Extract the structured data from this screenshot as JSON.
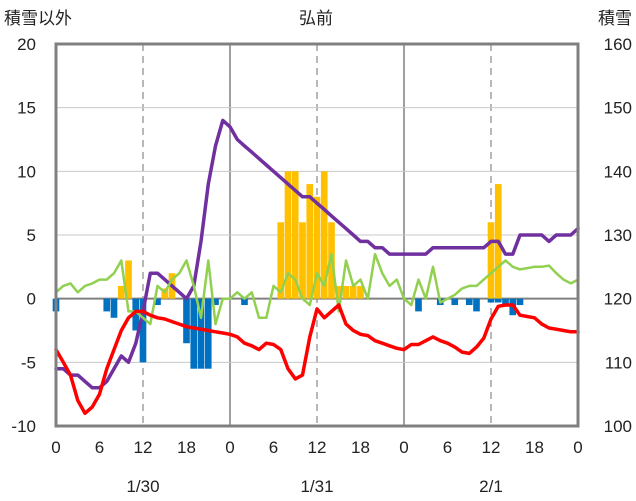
{
  "chart_data": {
    "type": "bar",
    "title": "弘前",
    "ylabel_left": "積雪以外",
    "ylabel_right": "積雪",
    "ylim_left": [
      -10,
      20
    ],
    "ylim_right": [
      100,
      160
    ],
    "yticks_left": [
      20,
      15,
      10,
      5,
      0,
      -5,
      -10
    ],
    "yticks_right": [
      160,
      150,
      140,
      130,
      120,
      110,
      100
    ],
    "xlim_hours": [
      0,
      72
    ],
    "xtick_labels": [
      "0",
      "6",
      "12",
      "18",
      "0",
      "6",
      "12",
      "18",
      "0",
      "6",
      "12",
      "18",
      "0"
    ],
    "day_labels": [
      {
        "label": "1/30",
        "hour": 12
      },
      {
        "label": "1/31",
        "hour": 36
      },
      {
        "label": "2/1",
        "hour": 60
      }
    ],
    "grid": {
      "dashed_hours": [
        12,
        36,
        60
      ],
      "solid_hours": [
        24,
        48
      ]
    },
    "colors": {
      "snowfall": "#ffc000",
      "temp_change": "#0070c0",
      "snow_depth": "#7030a0",
      "temp_change_line": "#92d050",
      "temperature": "#ff0000",
      "axis": "#808080"
    },
    "series": [
      {
        "kind": "bar",
        "axis": "left",
        "color_key": "snowfall",
        "x": [
          9,
          10,
          15,
          16,
          31,
          32,
          33,
          34,
          35,
          36,
          37,
          38,
          39,
          40,
          41,
          42,
          60,
          61
        ],
        "values": [
          1,
          3,
          0.8,
          2,
          6,
          10,
          10,
          6,
          9,
          8,
          10,
          6,
          1,
          1,
          1,
          1,
          6,
          9
        ]
      },
      {
        "kind": "bar",
        "axis": "left",
        "color_key": "temp_change",
        "x": [
          0,
          7,
          8,
          11,
          12,
          14,
          18,
          19,
          20,
          21,
          22,
          26,
          50,
          53,
          55,
          57,
          58,
          60,
          61,
          62,
          63,
          64
        ],
        "values": [
          -1,
          -1,
          -1.5,
          -2.5,
          -5,
          -0.5,
          -3.5,
          -5.5,
          -5.5,
          -5.5,
          -0.5,
          -0.5,
          -1,
          -0.5,
          -0.5,
          -0.5,
          -1,
          -0.3,
          -0.3,
          -0.5,
          -1.3,
          -0.5
        ]
      },
      {
        "kind": "line",
        "axis": "right",
        "color_key": "snow_depth",
        "x": [
          0,
          1,
          2,
          3,
          4,
          5,
          6,
          7,
          9,
          10,
          11,
          12,
          13,
          14,
          15,
          16,
          17,
          18,
          19,
          20,
          21,
          22,
          23,
          24,
          25,
          26,
          27,
          28,
          29,
          30,
          31,
          32,
          33,
          34,
          35,
          36,
          37,
          38,
          39,
          40,
          41,
          42,
          43,
          44,
          45,
          46,
          47,
          48,
          49,
          50,
          51,
          52,
          53,
          54,
          55,
          56,
          57,
          58,
          59,
          60,
          61,
          62,
          63,
          64,
          65,
          66,
          67,
          68,
          69,
          70,
          71,
          72
        ],
        "values": [
          109,
          109,
          108,
          108,
          107,
          106,
          106,
          107,
          111,
          110,
          113,
          118,
          124,
          124,
          123,
          122,
          121,
          120,
          122,
          129,
          138,
          144,
          148,
          147,
          145,
          144,
          143,
          142,
          141,
          140,
          139,
          138,
          137,
          136,
          136,
          135,
          134,
          133,
          132,
          131,
          130,
          129,
          129,
          128,
          128,
          127,
          127,
          127,
          127,
          127,
          127,
          128,
          128,
          128,
          128,
          128,
          128,
          128,
          128,
          129,
          129,
          127,
          127,
          130,
          130,
          130,
          130,
          129,
          130,
          130,
          130,
          131
        ]
      },
      {
        "kind": "line",
        "axis": "left",
        "color_key": "temp_change_line",
        "x": [
          0,
          1,
          2,
          3,
          4,
          5,
          6,
          7,
          8,
          9,
          10,
          11,
          12,
          13,
          14,
          15,
          16,
          17,
          18,
          19,
          20,
          21,
          22,
          23,
          24,
          25,
          26,
          27,
          28,
          29,
          30,
          31,
          32,
          33,
          34,
          35,
          36,
          37,
          38,
          39,
          40,
          41,
          42,
          43,
          44,
          45,
          46,
          47,
          48,
          49,
          50,
          51,
          52,
          53,
          54,
          55,
          56,
          57,
          58,
          59,
          60,
          61,
          62,
          63,
          64,
          65,
          66,
          67,
          68,
          69,
          70,
          71,
          72
        ],
        "values": [
          0.5,
          1,
          1.2,
          0.5,
          1,
          1.2,
          1.5,
          1.5,
          2,
          3,
          -1,
          -1,
          -1.5,
          -2,
          1,
          0.5,
          1.5,
          2,
          3,
          1,
          -1.5,
          3,
          -2,
          0,
          0,
          0.5,
          0,
          0.5,
          -1.5,
          -1.5,
          1,
          0.5,
          2,
          1.5,
          0,
          -0.5,
          2,
          1,
          3.5,
          -1,
          3,
          1,
          1.5,
          0,
          3.5,
          2,
          1,
          1.5,
          0,
          -0.5,
          1.5,
          0,
          2.5,
          -0.3,
          0,
          0.3,
          0.8,
          1,
          1,
          1.5,
          2,
          2.5,
          3,
          2.5,
          2.3,
          2.4,
          2.5,
          2.5,
          2.6,
          2,
          1.5,
          1.2,
          1.5
        ]
      },
      {
        "kind": "line",
        "axis": "left",
        "color_key": "temperature",
        "x": [
          0,
          1,
          2,
          3,
          4,
          5,
          6,
          7,
          8,
          9,
          10,
          11,
          12,
          13,
          14,
          15,
          16,
          17,
          18,
          19,
          20,
          21,
          22,
          23,
          24,
          25,
          26,
          27,
          28,
          29,
          30,
          31,
          32,
          33,
          34,
          35,
          36,
          37,
          38,
          39,
          40,
          41,
          42,
          43,
          44,
          45,
          46,
          47,
          48,
          49,
          50,
          51,
          52,
          53,
          54,
          55,
          56,
          57,
          58,
          59,
          60,
          61,
          62,
          63,
          64,
          65,
          66,
          67,
          68,
          69,
          70,
          71,
          72
        ],
        "values": [
          -4,
          -5,
          -6,
          -8,
          -9,
          -8.5,
          -7.5,
          -5.5,
          -4,
          -2.5,
          -1.5,
          -1,
          -1,
          -1.3,
          -1.5,
          -1.6,
          -1.8,
          -2,
          -2.2,
          -2.3,
          -2.4,
          -2.5,
          -2.6,
          -2.7,
          -2.8,
          -3,
          -3.5,
          -3.7,
          -4,
          -3.5,
          -3.6,
          -4,
          -5.5,
          -6.3,
          -6,
          -3,
          -0.8,
          -1.5,
          -1,
          -0.5,
          -2,
          -2.5,
          -2.8,
          -2.9,
          -3.3,
          -3.5,
          -3.7,
          -3.9,
          -4,
          -3.6,
          -3.6,
          -3.3,
          -3,
          -3.3,
          -3.5,
          -3.8,
          -4.2,
          -4.3,
          -3.8,
          -3.1,
          -1.6,
          -0.6,
          -0.5,
          -0.5,
          -1.3,
          -1.4,
          -1.5,
          -2,
          -2.3,
          -2.4,
          -2.5,
          -2.6,
          -2.6
        ]
      }
    ]
  }
}
